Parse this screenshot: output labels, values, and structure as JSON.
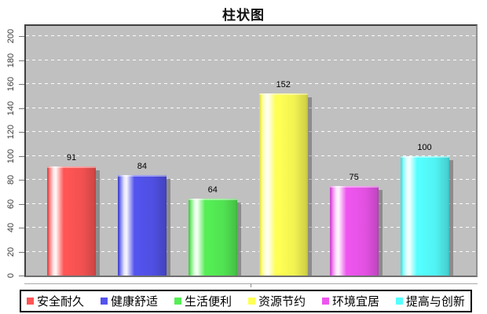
{
  "title": "柱状图",
  "chart_data": {
    "type": "bar",
    "title": "柱状图",
    "xlabel": "",
    "ylabel": "",
    "ylim": [
      0,
      200
    ],
    "yticks": [
      0,
      20,
      40,
      60,
      80,
      100,
      120,
      140,
      160,
      180,
      200
    ],
    "grid": true,
    "gridline_style": "dashed-white",
    "plot_background": "#c0c0c0",
    "legend_position": "bottom",
    "categories": [
      "安全耐久",
      "健康舒适",
      "生活便利",
      "资源节约",
      "环境宜居",
      "提高与创新"
    ],
    "values": [
      91,
      84,
      64,
      152,
      75,
      100
    ],
    "series": [
      {
        "label": "安全耐久",
        "value": 91,
        "color": "#ff5555"
      },
      {
        "label": "健康舒适",
        "value": 84,
        "color": "#5353ee"
      },
      {
        "label": "生活便利",
        "value": 64,
        "color": "#55ee55"
      },
      {
        "label": "资源节约",
        "value": 152,
        "color": "#ffff55"
      },
      {
        "label": "环境宜居",
        "value": 75,
        "color": "#ee55ee"
      },
      {
        "label": "提高与创新",
        "value": 100,
        "color": "#55ffff"
      }
    ]
  }
}
